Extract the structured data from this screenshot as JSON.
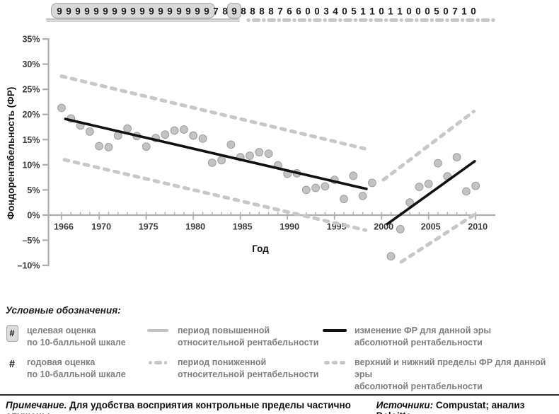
{
  "ratings_strip": {
    "digits": "9999999999999999978988887660034051101100050710",
    "boxed_group": {
      "start": 0,
      "end": 16
    },
    "boxed_single_index": 19,
    "solid_underline_range": [
      0,
      19
    ],
    "dashed_underline_range": [
      20,
      45
    ]
  },
  "chart_data": {
    "type": "scatter",
    "title": "",
    "xlabel": "Год",
    "ylabel": "Фондорентабельность (ФР)",
    "xlim": [
      1966,
      2010
    ],
    "ylim": [
      -10,
      35
    ],
    "grid": false,
    "legend_position": "bottom",
    "y_ticks": [
      {
        "v": 35,
        "label": "35%"
      },
      {
        "v": 30,
        "label": "30%"
      },
      {
        "v": 25,
        "label": "25%"
      },
      {
        "v": 20,
        "label": "20%"
      },
      {
        "v": 15,
        "label": "15%"
      },
      {
        "v": 10,
        "label": "10%"
      },
      {
        "v": 5,
        "label": "5%"
      },
      {
        "v": 0,
        "label": "0%"
      },
      {
        "v": -5,
        "label": "–5%"
      },
      {
        "v": -10,
        "label": "–10%"
      }
    ],
    "x_ticks": [
      {
        "v": 1966,
        "label": "1966"
      },
      {
        "v": 1970,
        "label": "1970"
      },
      {
        "v": 1975,
        "label": "1975"
      },
      {
        "v": 1980,
        "label": "1980"
      },
      {
        "v": 1985,
        "label": "1985"
      },
      {
        "v": 1990,
        "label": "1990"
      },
      {
        "v": 1995,
        "label": "1995"
      },
      {
        "v": 2000,
        "label": "2000"
      },
      {
        "v": 2005,
        "label": "2005"
      },
      {
        "v": 2010,
        "label": "2010"
      }
    ],
    "series": [
      {
        "name": "годовая ФР",
        "type": "scatter",
        "points": [
          [
            1966,
            21.3
          ],
          [
            1967,
            19.2
          ],
          [
            1968,
            17.8
          ],
          [
            1969,
            16.6
          ],
          [
            1970,
            13.7
          ],
          [
            1971,
            13.5
          ],
          [
            1972,
            15.8
          ],
          [
            1973,
            17.2
          ],
          [
            1974,
            15.7
          ],
          [
            1975,
            13.6
          ],
          [
            1976,
            15.3
          ],
          [
            1977,
            16.0
          ],
          [
            1978,
            16.8
          ],
          [
            1979,
            17.0
          ],
          [
            1980,
            15.8
          ],
          [
            1981,
            15.2
          ],
          [
            1982,
            10.4
          ],
          [
            1983,
            10.9
          ],
          [
            1984,
            14.0
          ],
          [
            1985,
            11.5
          ],
          [
            1986,
            11.8
          ],
          [
            1987,
            12.5
          ],
          [
            1988,
            12.2
          ],
          [
            1989,
            9.9
          ],
          [
            1990,
            8.2
          ],
          [
            1991,
            8.3
          ],
          [
            1992,
            5.0
          ],
          [
            1993,
            5.4
          ],
          [
            1994,
            5.7
          ],
          [
            1995,
            7.0
          ],
          [
            1996,
            3.2
          ],
          [
            1997,
            7.8
          ],
          [
            1998,
            3.8
          ],
          [
            1999,
            6.4
          ],
          [
            2001,
            -8.2
          ],
          [
            2002,
            -2.8
          ],
          [
            2003,
            2.5
          ],
          [
            2004,
            5.6
          ],
          [
            2005,
            6.2
          ],
          [
            2006,
            10.3
          ],
          [
            2007,
            7.7
          ],
          [
            2008,
            11.5
          ],
          [
            2009,
            4.7
          ],
          [
            2010,
            5.8
          ]
        ]
      }
    ],
    "eras": [
      {
        "name": "эра 1",
        "trend": [
          [
            1966.4,
            19.1
          ],
          [
            1998.4,
            5.2
          ]
        ],
        "upper_bound": [
          [
            1966.0,
            27.6
          ],
          [
            1998.2,
            13.2
          ]
        ],
        "lower_bound": [
          [
            1966.3,
            11.0
          ],
          [
            1998.3,
            -3.0
          ]
        ]
      },
      {
        "name": "эра 2",
        "trend": [
          [
            2000.6,
            -1.8
          ],
          [
            2009.9,
            10.7
          ]
        ],
        "upper_bound": [
          [
            2000.2,
            7.0
          ],
          [
            2009.8,
            20.6
          ]
        ],
        "lower_bound": [
          [
            2002.1,
            -9.3
          ],
          [
            2010.2,
            0.5
          ]
        ]
      }
    ]
  },
  "legend": {
    "header": "Условные обозначения:",
    "items": [
      {
        "id": "target-score",
        "symbol": "#",
        "line1": "целевая оценка",
        "line2": "по 10-балльной шкале"
      },
      {
        "id": "annual-score",
        "symbol": "#",
        "line1": "годовая оценка",
        "line2": "по 10-балльной шкале"
      },
      {
        "id": "high-rel-period",
        "line1": "период повышенной",
        "line2": "относительной рентабельности"
      },
      {
        "id": "low-rel-period",
        "line1": "период пониженной",
        "line2": "относительной рентабельности"
      },
      {
        "id": "era-roa-change",
        "line1": "изменение ФР для данной эры",
        "line2": "абсолютной рентабельности"
      },
      {
        "id": "era-roa-bounds",
        "line1": "верхний и нижний пределы ФР для данной эры",
        "line2": "абсолютной рентабельности"
      }
    ]
  },
  "footer": {
    "note_label": "Примечание.",
    "note_text": " Для удобства восприятия контрольные пределы частично опущены.",
    "sources_label": "Источники:",
    "sources_text": " Compustat; анализ Deloitte."
  },
  "colors": {
    "trend_line": "#111111",
    "bound_dash": "#c8c8c8",
    "point_fill": "#c3c3c3",
    "point_stroke": "#9d9d9d",
    "axis": "#aeaeae",
    "tick_label": "#3c3c3c",
    "digit": "#1a1a1a",
    "digit_box_fill": "#d9d9d9",
    "digit_box_stroke": "#a3a3a3",
    "underline_solid": "#b8b8b8",
    "underline_dash": "#c9c9c9",
    "legend_text": "#7e7e7e"
  }
}
